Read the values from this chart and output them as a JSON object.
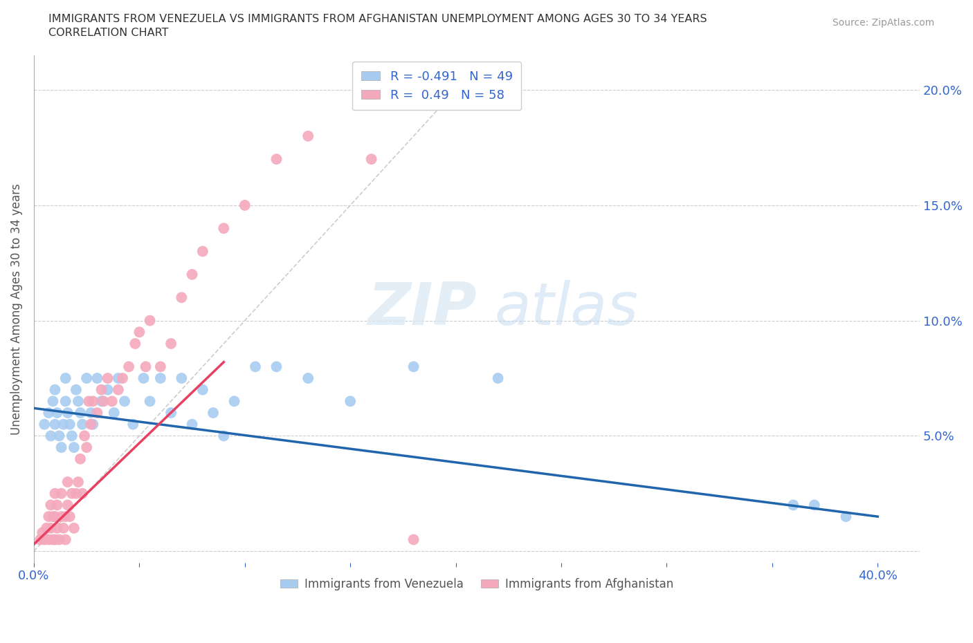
{
  "title_line1": "IMMIGRANTS FROM VENEZUELA VS IMMIGRANTS FROM AFGHANISTAN UNEMPLOYMENT AMONG AGES 30 TO 34 YEARS",
  "title_line2": "CORRELATION CHART",
  "source_text": "Source: ZipAtlas.com",
  "ylabel": "Unemployment Among Ages 30 to 34 years",
  "watermark_zip": "ZIP",
  "watermark_atlas": "atlas",
  "r_venezuela": -0.491,
  "n_venezuela": 49,
  "r_afghanistan": 0.49,
  "n_afghanistan": 58,
  "xlim": [
    0.0,
    0.42
  ],
  "ylim": [
    -0.005,
    0.215
  ],
  "yticks": [
    0.0,
    0.05,
    0.1,
    0.15,
    0.2
  ],
  "ytick_labels_right": [
    "",
    "5.0%",
    "10.0%",
    "15.0%",
    "20.0%"
  ],
  "xticks": [
    0.0,
    0.05,
    0.1,
    0.15,
    0.2,
    0.25,
    0.3,
    0.35,
    0.4
  ],
  "xtick_labels": [
    "0.0%",
    "",
    "",
    "",
    "",
    "",
    "",
    "",
    "40.0%"
  ],
  "color_venezuela": "#A8CCF0",
  "color_afghanistan": "#F4A8BC",
  "trendline_venezuela_color": "#2166ac",
  "trendline_afghanistan_color": "#E84060",
  "diagonal_color": "#CCCCCC",
  "axis_color": "#3366CC",
  "title_color": "#333333",
  "venezuela_x": [
    0.005,
    0.007,
    0.008,
    0.009,
    0.01,
    0.01,
    0.011,
    0.012,
    0.013,
    0.014,
    0.015,
    0.015,
    0.016,
    0.017,
    0.018,
    0.019,
    0.02,
    0.021,
    0.022,
    0.023,
    0.025,
    0.027,
    0.028,
    0.03,
    0.032,
    0.035,
    0.038,
    0.04,
    0.043,
    0.047,
    0.052,
    0.055,
    0.06,
    0.065,
    0.07,
    0.075,
    0.08,
    0.085,
    0.09,
    0.095,
    0.105,
    0.115,
    0.13,
    0.15,
    0.18,
    0.22,
    0.36,
    0.37,
    0.385
  ],
  "venezuela_y": [
    0.055,
    0.06,
    0.05,
    0.065,
    0.07,
    0.055,
    0.06,
    0.05,
    0.045,
    0.055,
    0.075,
    0.065,
    0.06,
    0.055,
    0.05,
    0.045,
    0.07,
    0.065,
    0.06,
    0.055,
    0.075,
    0.06,
    0.055,
    0.075,
    0.065,
    0.07,
    0.06,
    0.075,
    0.065,
    0.055,
    0.075,
    0.065,
    0.075,
    0.06,
    0.075,
    0.055,
    0.07,
    0.06,
    0.05,
    0.065,
    0.08,
    0.08,
    0.075,
    0.065,
    0.08,
    0.075,
    0.02,
    0.02,
    0.015
  ],
  "afghanistan_x": [
    0.003,
    0.004,
    0.005,
    0.006,
    0.007,
    0.007,
    0.008,
    0.008,
    0.009,
    0.009,
    0.01,
    0.01,
    0.01,
    0.011,
    0.011,
    0.012,
    0.013,
    0.013,
    0.014,
    0.015,
    0.015,
    0.016,
    0.016,
    0.017,
    0.018,
    0.019,
    0.02,
    0.021,
    0.022,
    0.023,
    0.024,
    0.025,
    0.026,
    0.027,
    0.028,
    0.03,
    0.032,
    0.033,
    0.035,
    0.037,
    0.04,
    0.042,
    0.045,
    0.048,
    0.05,
    0.053,
    0.055,
    0.06,
    0.065,
    0.07,
    0.075,
    0.08,
    0.09,
    0.1,
    0.115,
    0.13,
    0.16,
    0.18
  ],
  "afghanistan_y": [
    0.005,
    0.008,
    0.005,
    0.01,
    0.005,
    0.015,
    0.01,
    0.02,
    0.005,
    0.015,
    0.005,
    0.015,
    0.025,
    0.01,
    0.02,
    0.005,
    0.015,
    0.025,
    0.01,
    0.005,
    0.015,
    0.02,
    0.03,
    0.015,
    0.025,
    0.01,
    0.025,
    0.03,
    0.04,
    0.025,
    0.05,
    0.045,
    0.065,
    0.055,
    0.065,
    0.06,
    0.07,
    0.065,
    0.075,
    0.065,
    0.07,
    0.075,
    0.08,
    0.09,
    0.095,
    0.08,
    0.1,
    0.08,
    0.09,
    0.11,
    0.12,
    0.13,
    0.14,
    0.15,
    0.17,
    0.18,
    0.17,
    0.005
  ],
  "ven_trend_x": [
    0.0,
    0.4
  ],
  "ven_trend_y": [
    0.062,
    0.015
  ],
  "afg_trend_x": [
    0.0,
    0.09
  ],
  "afg_trend_y": [
    0.003,
    0.082
  ]
}
